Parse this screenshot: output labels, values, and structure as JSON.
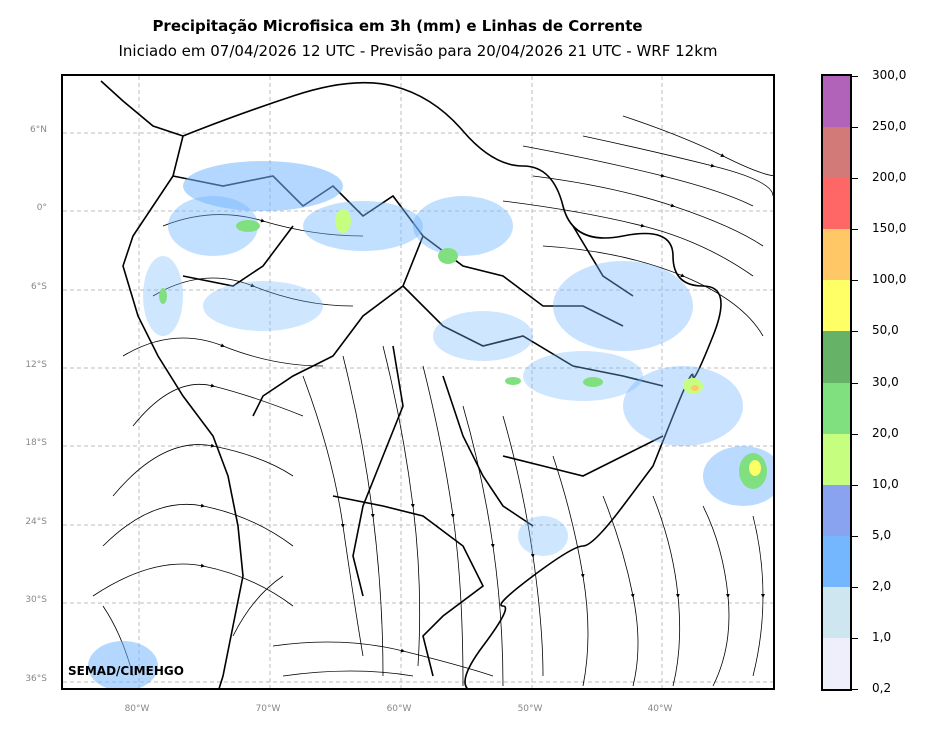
{
  "header": {
    "title": "Precipitação Microfisica em 3h (mm) e Linhas de Corrente",
    "subtitle": "Iniciado em 07/04/2026 12 UTC - Previsão para 20/04/2026 21 UTC - WRF 12km"
  },
  "map": {
    "lat_labels": [
      "6°N",
      "0°",
      "6°S",
      "12°S",
      "18°S",
      "24°S",
      "30°S",
      "36°S"
    ],
    "lon_labels": [
      "80°W",
      "70°W",
      "60°W",
      "50°W",
      "40°W"
    ],
    "credit": "SEMAD/CIMEHGO"
  },
  "colorbar": {
    "labels": [
      "300,0",
      "250,0",
      "200,0",
      "150,0",
      "100,0",
      "50,0",
      "30,0",
      "20,0",
      "10,0",
      "5,0",
      "2,0",
      "1,0",
      "0,2"
    ],
    "colors": [
      "#b162b9",
      "#d17a78",
      "#ff6666",
      "#ffc766",
      "#ffff66",
      "#66b266",
      "#80e080",
      "#c6ff80",
      "#8aa3f0",
      "#75b7ff",
      "#cde6f0",
      "#efeffc"
    ]
  }
}
